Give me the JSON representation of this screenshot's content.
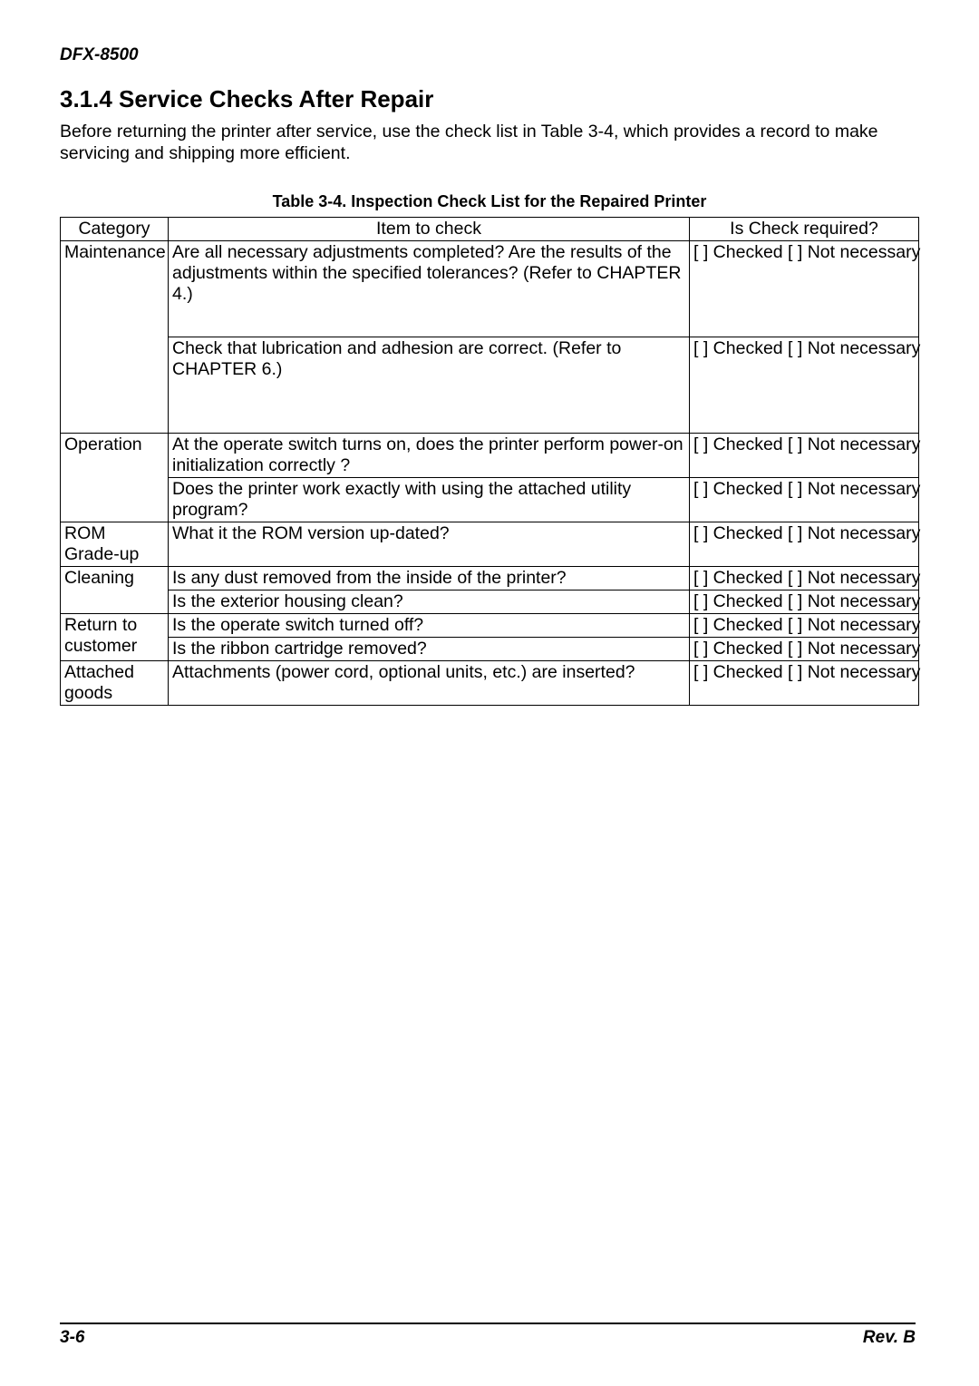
{
  "header": {
    "model": "DFX-8500"
  },
  "section": {
    "number_title": "3.1.4  Service Checks After Repair",
    "intro": "Before returning the printer after service, use the check list in Table 3-4, which provides a record to make servicing and shipping more efficient."
  },
  "table": {
    "caption": "Table 3-4. Inspection Check List for the Repaired Printer",
    "headers": {
      "category": "Category",
      "item": "Item to check",
      "check": "Is Check required?"
    },
    "check_label": "[ ] Checked [ ] Not necessary",
    "rows": [
      {
        "category": "Maintenance",
        "item": "Are all necessary adjustments completed? Are the results of the adjustments within the specified tolerances? (Refer to CHAPTER 4.)",
        "tall": true,
        "merge_top": false,
        "cat_rowspan": 2
      },
      {
        "category": "",
        "item": "Check that lubrication and adhesion are correct. (Refer to CHAPTER 6.)",
        "tall": true,
        "merge_top": true
      },
      {
        "category": "Operation",
        "item": "At the operate switch turns on, does the printer perform power-on initialization correctly ?",
        "cat_rowspan": 2
      },
      {
        "category": "",
        "item": "Does the printer work exactly with using the attached utility program?",
        "merge_top": true
      },
      {
        "category": "ROM Grade-up",
        "item": "What it the ROM version up-dated?"
      },
      {
        "category": "Cleaning",
        "item": "Is any dust removed from the inside of the printer?",
        "cat_rowspan": 2
      },
      {
        "category": "",
        "item": "Is the exterior housing clean?",
        "merge_top": true
      },
      {
        "category": "Return to customer",
        "item": "Is the operate switch turned off?",
        "cat_rowspan": 2,
        "cat_split": [
          "Return to",
          "customer"
        ]
      },
      {
        "category": "",
        "item": "Is the ribbon cartridge removed?",
        "merge_top": true
      },
      {
        "category": "Attached goods",
        "item": "Attachments (power cord, optional units, etc.) are inserted?"
      }
    ]
  },
  "footer": {
    "page": "3-6",
    "rev": "Rev. B"
  }
}
